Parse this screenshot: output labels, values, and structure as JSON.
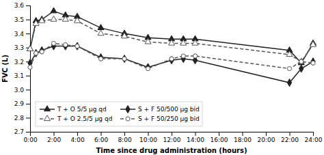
{
  "chart_data": {
    "type": "line",
    "xlabel": "Time since drug administration (hours)",
    "ylabel": "FVC (L)",
    "x": [
      0,
      0.5,
      1,
      2,
      3,
      4,
      6,
      8,
      10,
      12,
      13,
      14,
      22,
      23,
      24
    ],
    "xlim": [
      0,
      24
    ],
    "xticks": [
      {
        "value": 0,
        "label": "0:00"
      },
      {
        "value": 2,
        "label": "2:00"
      },
      {
        "value": 4,
        "label": "4:00"
      },
      {
        "value": 6,
        "label": "6:00"
      },
      {
        "value": 8,
        "label": "8:00"
      },
      {
        "value": 10,
        "label": "10:00"
      },
      {
        "value": 12,
        "label": "12:00"
      },
      {
        "value": 14,
        "label": "14:00"
      },
      {
        "value": 16,
        "label": "16:00"
      },
      {
        "value": 18,
        "label": "18:00"
      },
      {
        "value": 20,
        "label": "20:00"
      },
      {
        "value": 22,
        "label": "22:00"
      },
      {
        "value": 24,
        "label": "24:00"
      }
    ],
    "ylim": [
      2.7,
      3.6
    ],
    "yticks": [
      2.7,
      2.8,
      2.9,
      {
        "value": 3,
        "label": "3.0"
      },
      3.1,
      3.2,
      3.3,
      3.4,
      3.5,
      3.6
    ],
    "grid": false,
    "legend": "lower left",
    "series": [
      {
        "name": "T + O 5/5 μg qd",
        "color": "#222222",
        "marker": "triangle",
        "line_style": "solid",
        "values": [
          3.29,
          3.49,
          3.5,
          3.56,
          3.53,
          3.52,
          3.44,
          3.4,
          3.37,
          3.36,
          3.36,
          3.36,
          3.28,
          3.19,
          3.33
        ]
      },
      {
        "name": "T + O 2.5/5 μg qd",
        "color": "#555555",
        "marker": "triangle-open",
        "line_style": "dashed",
        "values": [
          3.29,
          3.47,
          3.49,
          3.5,
          3.5,
          3.49,
          3.4,
          3.38,
          3.34,
          3.33,
          3.33,
          3.33,
          3.25,
          3.2,
          3.32
        ]
      },
      {
        "name": "S + F 50/500 μg bid",
        "color": "#222222",
        "marker": "diamond",
        "line_style": "solid",
        "values": [
          3.19,
          3.26,
          3.28,
          3.31,
          3.31,
          3.31,
          3.23,
          3.22,
          3.16,
          3.21,
          3.22,
          3.21,
          3.05,
          3.15,
          3.2
        ]
      },
      {
        "name": "S + F 50/250 μg bid",
        "color": "#555555",
        "marker": "circle-open",
        "line_style": "dashed",
        "values": [
          3.16,
          3.26,
          3.27,
          3.33,
          3.32,
          3.31,
          3.22,
          3.22,
          3.15,
          3.22,
          3.24,
          3.24,
          3.15,
          3.2,
          3.19
        ]
      }
    ]
  }
}
